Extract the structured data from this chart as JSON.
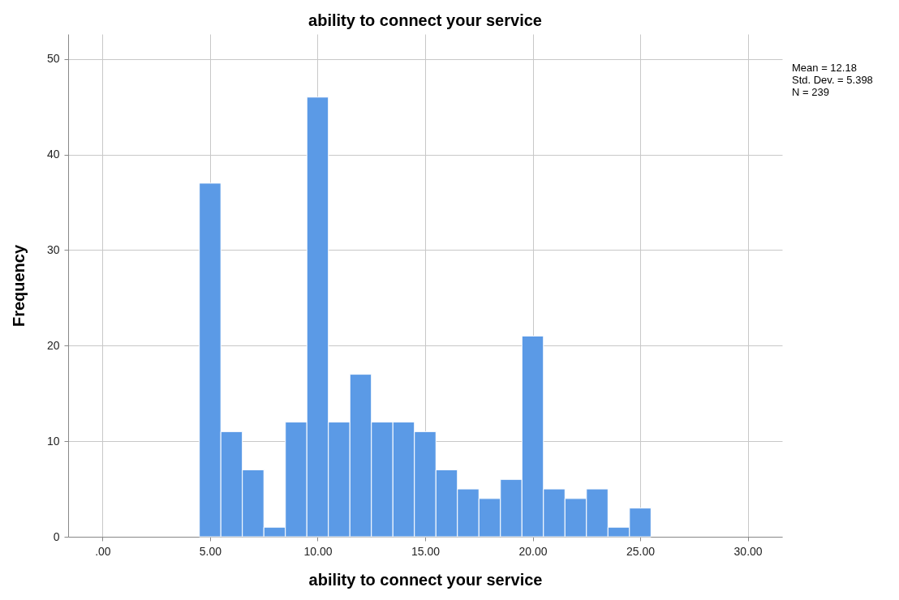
{
  "chart_data": {
    "type": "histogram",
    "title": "ability to connect your service",
    "xlabel": "ability to connect your service",
    "ylabel": "Frequency",
    "bins": [
      4.5,
      5.5,
      6.5,
      7.5,
      8.5,
      9.5,
      10.5,
      11.5,
      12.5,
      13.5,
      14.5,
      15.5,
      16.5,
      17.5,
      18.5,
      19.5,
      20.5,
      21.5,
      22.5,
      23.5,
      24.5,
      25.5
    ],
    "values": [
      37,
      11,
      7,
      1,
      12,
      46,
      12,
      17,
      12,
      12,
      11,
      7,
      5,
      4,
      6,
      21,
      5,
      4,
      5,
      1,
      3
    ],
    "color": "#5b9ae6",
    "xlim": [
      -1.6,
      31.6
    ],
    "ylim": [
      0,
      52.6
    ],
    "xticks": [
      {
        "value": 0,
        "label": ".00"
      },
      {
        "value": 5,
        "label": "5.00"
      },
      {
        "value": 10,
        "label": "10.00"
      },
      {
        "value": 15,
        "label": "15.00"
      },
      {
        "value": 20,
        "label": "20.00"
      },
      {
        "value": 25,
        "label": "25.00"
      },
      {
        "value": 30,
        "label": "30.00"
      }
    ],
    "yticks": [
      0,
      10,
      20,
      30,
      40,
      50
    ],
    "grid": true,
    "annotations": [
      "Mean = 12.18",
      "Std. Dev. = 5.398",
      "N = 239"
    ]
  }
}
